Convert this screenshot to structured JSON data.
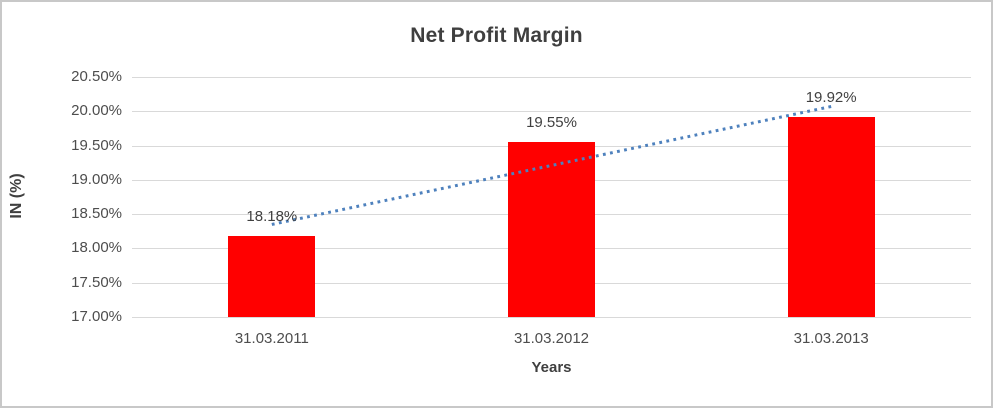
{
  "chart_data": {
    "type": "bar",
    "title": "Net Profit Margin",
    "categories": [
      "31.03.2011",
      "31.03.2012",
      "31.03.2013"
    ],
    "values": [
      18.18,
      19.55,
      19.92
    ],
    "data_labels": [
      "18.18%",
      "19.55%",
      "19.92%"
    ],
    "xlabel": "Years",
    "ylabel": "IN (%)",
    "ylim": [
      17.0,
      20.5
    ],
    "ytick_step": 0.5,
    "ytick_labels": [
      "20.50%",
      "20.00%",
      "19.50%",
      "19.00%",
      "18.50%",
      "18.00%",
      "17.50%",
      "17.00%"
    ],
    "grid": true,
    "legend": "none",
    "bar_color": "#FF0000",
    "trendline": {
      "type": "linear",
      "style": "dotted",
      "color": "#4E81BD",
      "start_value": 18.35,
      "end_value": 20.07
    },
    "colors": {
      "title_text": "#3F3F3F",
      "axis_text": "#4D4D4D",
      "gridline": "#D9D9D9",
      "frame_border": "#C8C8C8",
      "background": "#FFFFFF"
    }
  }
}
